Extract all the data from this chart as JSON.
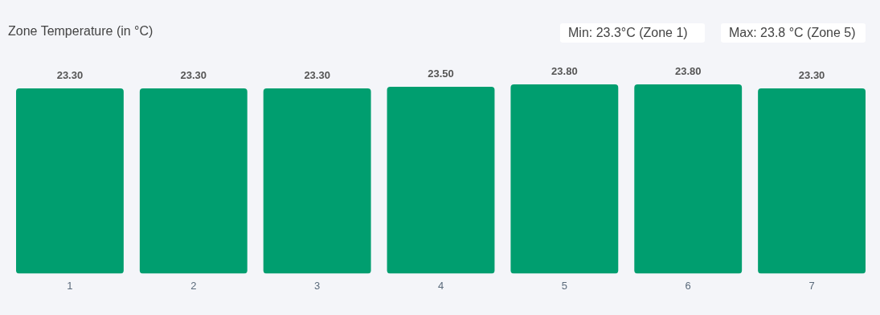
{
  "chart_data": {
    "type": "bar",
    "title": "Zone Temperature (in °C)",
    "categories": [
      "1",
      "2",
      "3",
      "4",
      "5",
      "6",
      "7"
    ],
    "values": [
      23.3,
      23.3,
      23.3,
      23.5,
      23.8,
      23.8,
      23.3
    ],
    "value_labels": [
      "23.30",
      "23.30",
      "23.30",
      "23.50",
      "23.80",
      "23.80",
      "23.30"
    ],
    "color": "#009e6f",
    "annotations": [
      "Min: 23.3°C (Zone 1)",
      "Max: 23.8 °C (Zone 5)"
    ],
    "grid": false,
    "legend": false
  }
}
